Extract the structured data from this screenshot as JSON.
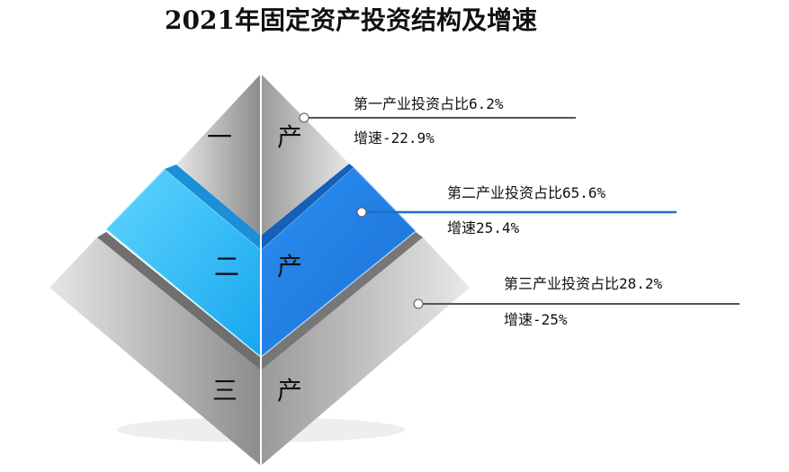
{
  "title": "2021年固定资产投资结构及增速",
  "layers": [
    {
      "left": "一",
      "right": "产",
      "share": "第一产业投资占比6.2%",
      "growth": "增速-22.9%"
    },
    {
      "left": "二",
      "right": "产",
      "share": "第二产业投资占比65.6%",
      "growth": "增速25.4%"
    },
    {
      "left": "三",
      "right": "产",
      "share": "第三产业投资占比28.2%",
      "growth": "增速-25%"
    }
  ]
}
